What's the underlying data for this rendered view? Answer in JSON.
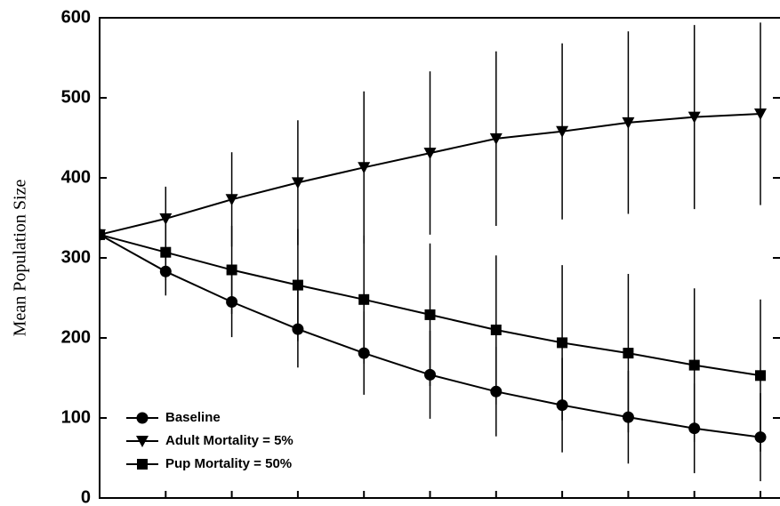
{
  "chart_data": {
    "type": "line",
    "y_label": "Mean Population Size",
    "categories": [
      null,
      null,
      null,
      null,
      null,
      null,
      null,
      null,
      null,
      null,
      null
    ],
    "ylim": [
      0,
      600
    ],
    "yticks": [
      0,
      100,
      200,
      300,
      400,
      500,
      600
    ],
    "legend": "lower left",
    "series": [
      {
        "name": "Baseline",
        "color": "#000000",
        "marker": "circle",
        "values": [
          329,
          283,
          245,
          211,
          181,
          154,
          133,
          116,
          101,
          87,
          76
        ],
        "errors": [
          0,
          30,
          44,
          48,
          52,
          55,
          56,
          59,
          58,
          56,
          55
        ]
      },
      {
        "name": "Adult Mortality = 5%",
        "color": "#000000",
        "marker": "triangle-down",
        "values": [
          329,
          349,
          373,
          394,
          413,
          431,
          449,
          458,
          469,
          476,
          480
        ],
        "errors": [
          0,
          40,
          59,
          78,
          95,
          102,
          109,
          110,
          114,
          115,
          114
        ]
      },
      {
        "name": "Pup Mortality = 50%",
        "color": "#000000",
        "marker": "square",
        "values": [
          329,
          307,
          285,
          266,
          248,
          229,
          210,
          194,
          181,
          166,
          153
        ],
        "errors": [
          0,
          35,
          55,
          70,
          80,
          89,
          93,
          97,
          99,
          96,
          95
        ]
      }
    ]
  }
}
